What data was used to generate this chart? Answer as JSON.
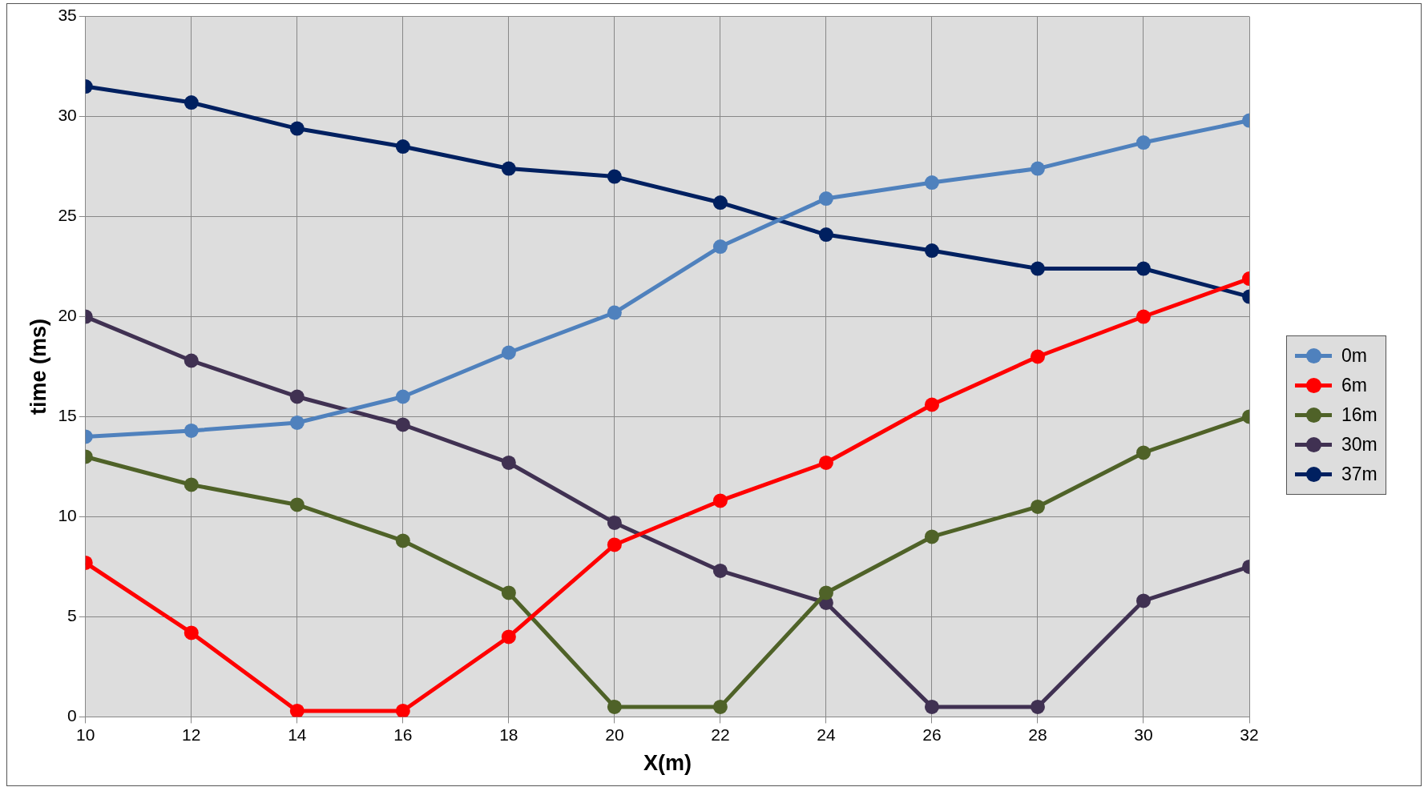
{
  "chart_data": {
    "type": "line",
    "xlabel": "X(m)",
    "ylabel": "time (ms)",
    "x": [
      10,
      12,
      14,
      16,
      18,
      20,
      22,
      24,
      26,
      28,
      30,
      32
    ],
    "xlim": [
      10,
      32
    ],
    "xticks": [
      10,
      12,
      14,
      16,
      18,
      20,
      22,
      24,
      26,
      28,
      30,
      32
    ],
    "ylim": [
      0,
      35
    ],
    "yticks": [
      0,
      5,
      10,
      15,
      20,
      25,
      30,
      35
    ],
    "grid": true,
    "legend": "right",
    "marker": "circle",
    "line_style": "solid",
    "series": [
      {
        "name": "0m",
        "color": "#4f81bd",
        "values": [
          14.0,
          14.3,
          14.7,
          16.0,
          18.2,
          20.2,
          23.5,
          25.9,
          26.7,
          27.4,
          28.7,
          29.8
        ]
      },
      {
        "name": "6m",
        "color": "#ff0000",
        "values": [
          7.7,
          4.2,
          0.3,
          0.3,
          4.0,
          8.6,
          10.8,
          12.7,
          15.6,
          18.0,
          20.0,
          21.9
        ]
      },
      {
        "name": "16m",
        "color": "#4f6228",
        "values": [
          13.0,
          11.6,
          10.6,
          8.8,
          6.2,
          0.5,
          0.5,
          6.2,
          9.0,
          10.5,
          13.2,
          15.0
        ]
      },
      {
        "name": "30m",
        "color": "#403152",
        "values": [
          20.0,
          17.8,
          16.0,
          14.6,
          12.7,
          9.7,
          7.3,
          5.7,
          0.5,
          0.5,
          5.8,
          7.5
        ]
      },
      {
        "name": "37m",
        "color": "#002060",
        "values": [
          31.5,
          30.7,
          29.4,
          28.5,
          27.4,
          27.0,
          25.7,
          24.1,
          23.3,
          22.4,
          22.4,
          21.0
        ]
      }
    ]
  }
}
